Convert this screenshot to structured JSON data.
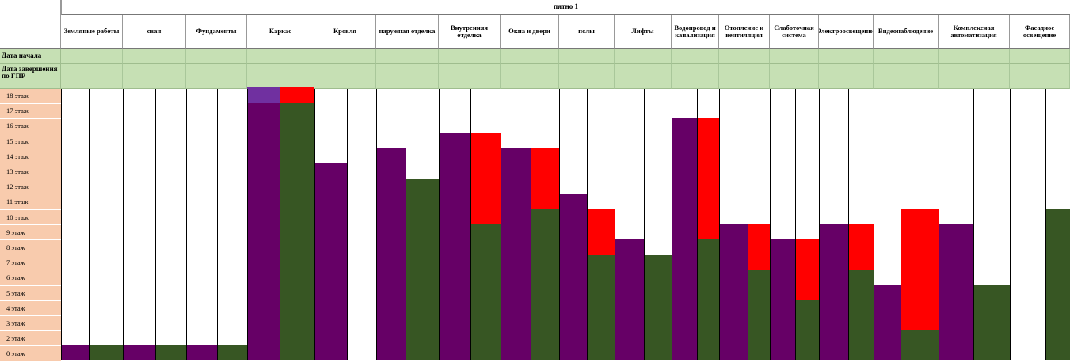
{
  "sheet": {
    "title": "пятно 1",
    "row_labels": {
      "start": "Дата начала",
      "end": "Дата завершения по ГПР"
    }
  },
  "colors": {
    "plan": "#660066",
    "actual": "#375623",
    "lag": "#ff0000",
    "plan_partial": "#7030a0",
    "header_green": "#c6e0b4",
    "floor_label": "#f8cbad"
  },
  "chart_data": {
    "type": "bar",
    "title": "пятно 1",
    "floors": [
      "18 этаж",
      "17 этаж",
      "16 этаж",
      "15 этаж",
      "14 этаж",
      "13 этаж",
      "12 этаж",
      "11 этаж",
      "10 этаж",
      "9 этаж",
      "8 этаж",
      "7 этаж",
      "6 этаж",
      "5 этаж",
      "4 этаж",
      "3 этаж",
      "2 этаж",
      "0 этаж"
    ],
    "series_names": [
      "",
      "",
      ""
    ],
    "categories": [
      {
        "name": "Земляные работы",
        "plan": 1,
        "actual": 1,
        "lag": 0
      },
      {
        "name": "сван",
        "plan": 1,
        "actual": 1,
        "lag": 0
      },
      {
        "name": "Фундаменты",
        "plan": 1,
        "actual": 1,
        "lag": 0
      },
      {
        "name": "Каркас",
        "plan": 18,
        "actual": 17,
        "lag": 1,
        "plan_partial_top": true
      },
      {
        "name": "Кровля",
        "plan": 13,
        "actual": 0,
        "lag": 0
      },
      {
        "name": "наружная отделка",
        "plan": 14,
        "actual": 12,
        "lag": 0
      },
      {
        "name": "Внутренняя отделка",
        "plan": 15,
        "actual": 9,
        "lag": 6
      },
      {
        "name": "Окна и двери",
        "plan": 14,
        "actual": 10,
        "lag": 4
      },
      {
        "name": "полы",
        "plan": 11,
        "actual": 7,
        "lag": 3
      },
      {
        "name": "Лифты",
        "plan": 8,
        "actual": 7,
        "lag": 0
      },
      {
        "name": "Водопровод и канализация",
        "plan": 16,
        "actual": 8,
        "lag": 8
      },
      {
        "name": "Отопление и вентиляция",
        "plan": 9,
        "actual": 6,
        "lag": 3
      },
      {
        "name": "Слаботочная система",
        "plan": 8,
        "actual": 4,
        "lag": 4
      },
      {
        "name": "Электроосвещение",
        "plan": 9,
        "actual": 6,
        "lag": 3
      },
      {
        "name": "Видеонаблюдение",
        "plan": 5,
        "actual": 2,
        "lag": 8
      },
      {
        "name": "Комплексная автоматизация",
        "plan": 9,
        "actual": 5,
        "lag": 0
      },
      {
        "name": "Фасадное освещение",
        "plan": 0,
        "actual": 10,
        "lag": 0
      }
    ],
    "header_labels": [
      "Земляные работы",
      "сван",
      "Фундаменты",
      "Каркас",
      "Кровля",
      "наружная отделка",
      "Внутренняя отделка",
      "Окна и двери",
      "полы",
      "Лифты",
      "Водопровод и канализация",
      "Отопление и вентиляция",
      "Слаботочная система",
      "Электроосвещение",
      "Видеонаблюдение",
      "Комплексная автоматизация",
      "Фасадное освещение"
    ],
    "ylim": [
      0,
      18
    ],
    "grid": false,
    "legend": "none"
  }
}
